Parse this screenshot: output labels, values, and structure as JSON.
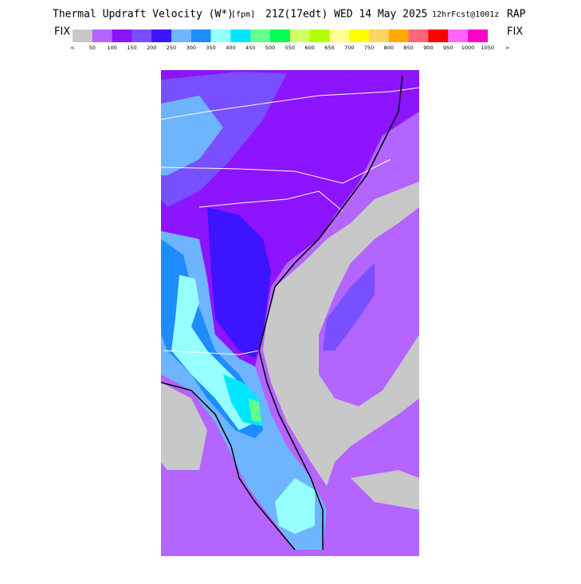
{
  "header": {
    "title": "Thermal Updraft Velocity (W*)",
    "units": "[fpm]",
    "valid": "21Z(17edt) WED 14 May 2025",
    "forecast": "12hrFcst@1001z",
    "model": "RAP"
  },
  "colorbar": {
    "left_label": "FIX",
    "right_label": "FIX",
    "colors": [
      "#c8c8c8",
      "#b464ff",
      "#8c14ff",
      "#7850ff",
      "#3c14ff",
      "#6eb4ff",
      "#1e8cff",
      "#96ffff",
      "#00e6ff",
      "#64ff8c",
      "#00ff50",
      "#d2ff64",
      "#b4ff00",
      "#ffff96",
      "#ffff00",
      "#ffd264",
      "#ffaa00",
      "#ff6478",
      "#ff0000",
      "#ff64ff",
      "#ff00c8"
    ],
    "labels": [
      "<",
      "50",
      "100",
      "150",
      "200",
      "250",
      "300",
      "350",
      "400",
      "450",
      "500",
      "550",
      "600",
      "650",
      "700",
      "750",
      "800",
      "850",
      "900",
      "950",
      "1000",
      "1050",
      ">"
    ]
  }
}
